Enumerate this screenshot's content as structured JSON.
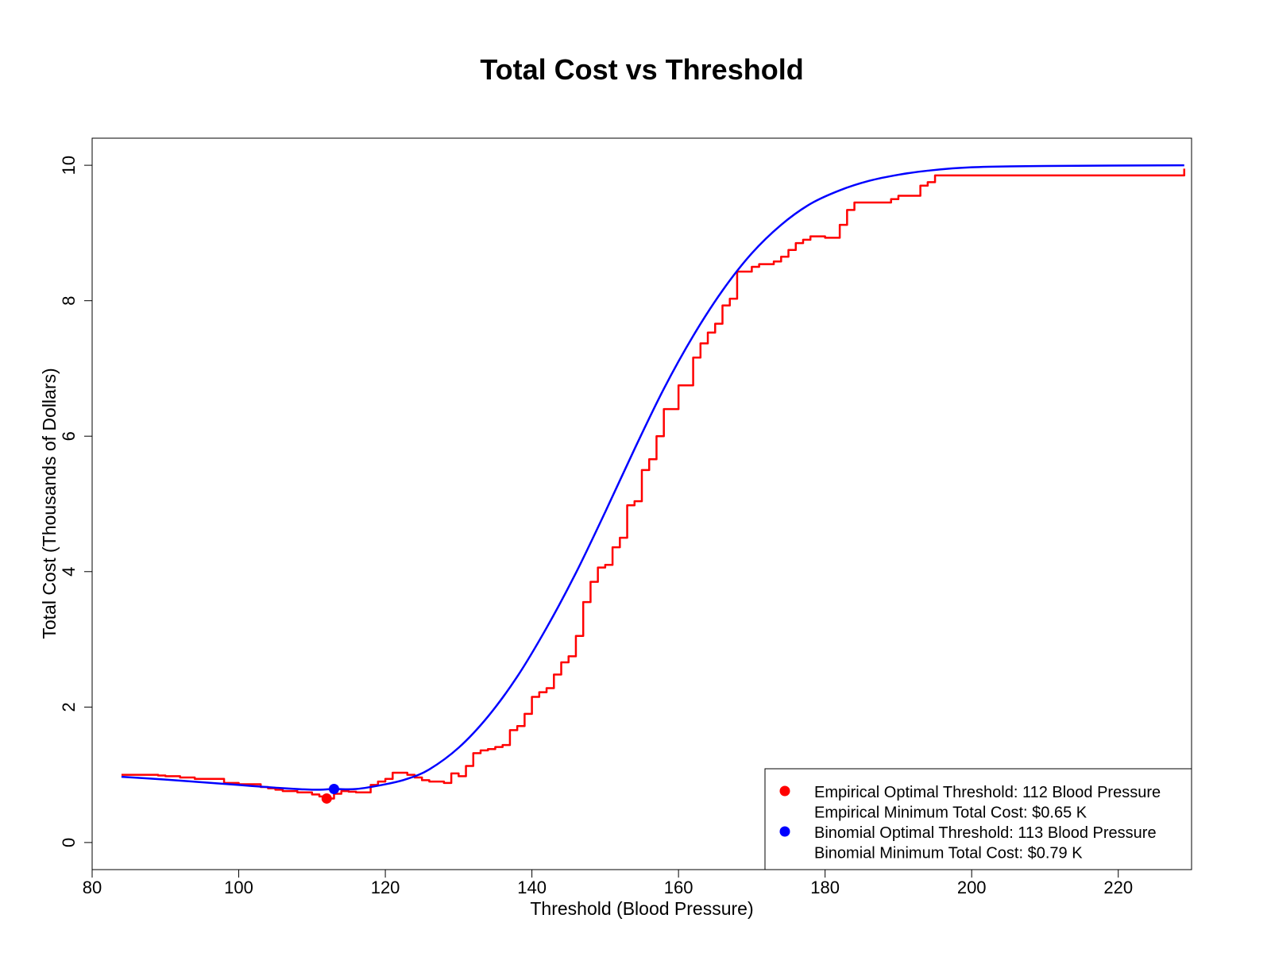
{
  "chart_data": {
    "type": "line",
    "title": "Total Cost vs Threshold",
    "xlabel": "Threshold (Blood Pressure)",
    "ylabel": "Total Cost (Thousands of Dollars)",
    "xlim": [
      80,
      230
    ],
    "ylim": [
      -0.4,
      10.4
    ],
    "xticks": [
      "80",
      "100",
      "120",
      "140",
      "160",
      "180",
      "200",
      "220"
    ],
    "yticks": [
      "0",
      "2",
      "4",
      "6",
      "8",
      "10"
    ],
    "grid": false,
    "legend_position": "bottom-right",
    "series": [
      {
        "name": "Empirical",
        "kind": "step",
        "color": "#ff0000",
        "x": [
          84,
          89,
          90,
          92,
          94,
          98,
          100,
          103,
          104,
          105,
          106,
          108,
          110,
          111,
          112,
          113,
          114,
          115,
          116,
          118,
          119,
          120,
          121,
          123,
          124,
          125,
          126,
          128,
          129,
          130,
          131,
          132,
          133,
          134,
          135,
          136,
          137,
          138,
          139,
          140,
          141,
          142,
          143,
          144,
          145,
          146,
          147,
          148,
          149,
          150,
          151,
          152,
          153,
          154,
          155,
          156,
          157,
          158,
          159,
          160,
          162,
          163,
          164,
          165,
          166,
          167,
          168,
          170,
          171,
          173,
          174,
          175,
          176,
          177,
          178,
          180,
          182,
          183,
          184,
          189,
          190,
          193,
          194,
          195,
          229
        ],
        "y": [
          1.0,
          0.99,
          0.98,
          0.96,
          0.94,
          0.88,
          0.86,
          0.82,
          0.8,
          0.78,
          0.76,
          0.74,
          0.71,
          0.68,
          0.65,
          0.72,
          0.76,
          0.75,
          0.74,
          0.85,
          0.9,
          0.94,
          1.03,
          1.0,
          0.96,
          0.92,
          0.9,
          0.88,
          1.02,
          0.98,
          1.13,
          1.32,
          1.36,
          1.38,
          1.41,
          1.44,
          1.66,
          1.72,
          1.9,
          2.15,
          2.22,
          2.28,
          2.48,
          2.66,
          2.75,
          3.05,
          3.55,
          3.85,
          4.06,
          4.1,
          4.36,
          4.5,
          4.98,
          5.04,
          5.5,
          5.66,
          6.0,
          6.4,
          6.4,
          6.75,
          7.16,
          7.37,
          7.53,
          7.66,
          7.93,
          8.03,
          8.43,
          8.5,
          8.54,
          8.58,
          8.65,
          8.75,
          8.85,
          8.9,
          8.95,
          8.93,
          9.12,
          9.34,
          9.45,
          9.5,
          9.55,
          9.7,
          9.75,
          9.85,
          9.95
        ]
      },
      {
        "name": "Binomial",
        "kind": "smooth",
        "color": "#0000ff",
        "x": [
          84,
          90,
          95,
          100,
          105,
          110,
          113,
          116,
          120,
          123,
          126,
          130,
          134,
          138,
          142,
          146,
          150,
          154,
          158,
          162,
          166,
          170,
          174,
          178,
          182,
          186,
          190,
          194,
          200,
          210,
          229
        ],
        "y": [
          0.97,
          0.93,
          0.89,
          0.85,
          0.81,
          0.78,
          0.79,
          0.79,
          0.86,
          0.94,
          1.08,
          1.4,
          1.86,
          2.45,
          3.17,
          3.98,
          4.88,
          5.81,
          6.7,
          7.48,
          8.15,
          8.7,
          9.12,
          9.43,
          9.63,
          9.77,
          9.86,
          9.92,
          9.97,
          9.99,
          10.0
        ]
      }
    ],
    "points": [
      {
        "name": "Empirical optimum",
        "x": 112,
        "y": 0.65,
        "color": "#ff0000"
      },
      {
        "name": "Binomial optimum",
        "x": 113,
        "y": 0.79,
        "color": "#0000ff"
      }
    ],
    "legend": [
      {
        "marker_color": "#ff0000",
        "text": "Empirical Optimal Threshold: 112 Blood Pressure"
      },
      {
        "marker_color": "",
        "text": "Empirical Minimum Total Cost: $0.65 K"
      },
      {
        "marker_color": "#0000ff",
        "text": "Binomial Optimal Threshold: 113 Blood Pressure"
      },
      {
        "marker_color": "",
        "text": "Binomial Minimum Total Cost: $0.79 K"
      }
    ]
  }
}
